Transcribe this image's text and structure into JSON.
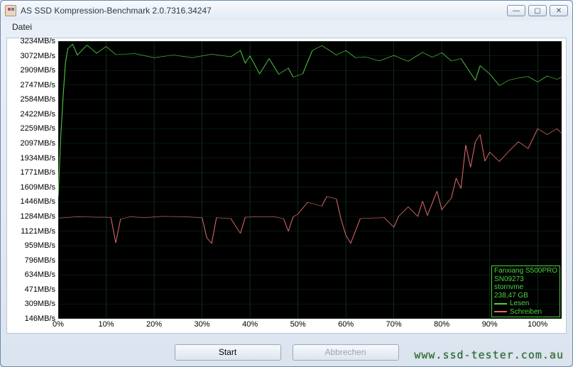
{
  "window": {
    "title": "AS SSD Kompression-Benchmark 2.0.7316.34247",
    "controls": {
      "minimize": "—",
      "maximize": "▢",
      "close": "✕"
    }
  },
  "menu": {
    "file": "Datei"
  },
  "chart": {
    "type": "line",
    "background_color": "#000000",
    "grid_color": "#104028",
    "panel_background": "#ffffff",
    "ylim": [
      146,
      3234
    ],
    "y_ticks": [
      3234,
      3072,
      2909,
      2747,
      2584,
      2422,
      2259,
      2097,
      1934,
      1771,
      1609,
      1446,
      1284,
      1121,
      959,
      796,
      634,
      471,
      309,
      146
    ],
    "y_unit": "MB/s",
    "xlim": [
      0,
      105
    ],
    "x_ticks": [
      0,
      10,
      20,
      30,
      40,
      50,
      60,
      70,
      80,
      90,
      100
    ],
    "x_unit": "%",
    "series": {
      "read": {
        "label": "Lesen",
        "color": "#4fd040",
        "line_width": 1.5,
        "data": [
          [
            0,
            1505
          ],
          [
            0.5,
            2140
          ],
          [
            1,
            2600
          ],
          [
            1.5,
            2990
          ],
          [
            2,
            3150
          ],
          [
            3,
            3200
          ],
          [
            4,
            3080
          ],
          [
            6,
            3190
          ],
          [
            8,
            3100
          ],
          [
            10,
            3175
          ],
          [
            12,
            3085
          ],
          [
            16,
            3095
          ],
          [
            20,
            3050
          ],
          [
            24,
            3080
          ],
          [
            28,
            3050
          ],
          [
            32,
            3090
          ],
          [
            36,
            3060
          ],
          [
            38,
            3130
          ],
          [
            39,
            2990
          ],
          [
            40,
            3070
          ],
          [
            42,
            2870
          ],
          [
            44,
            3040
          ],
          [
            46,
            2865
          ],
          [
            48,
            2935
          ],
          [
            49,
            2835
          ],
          [
            51,
            2870
          ],
          [
            53,
            3130
          ],
          [
            55,
            3185
          ],
          [
            58,
            3080
          ],
          [
            60,
            3130
          ],
          [
            62,
            3050
          ],
          [
            64,
            3060
          ],
          [
            67,
            3015
          ],
          [
            70,
            3075
          ],
          [
            73,
            3010
          ],
          [
            76,
            3110
          ],
          [
            78,
            3055
          ],
          [
            80,
            3105
          ],
          [
            82,
            3015
          ],
          [
            84,
            3040
          ],
          [
            86,
            2880
          ],
          [
            87,
            2800
          ],
          [
            88,
            2960
          ],
          [
            90,
            2870
          ],
          [
            92,
            2740
          ],
          [
            94,
            2800
          ],
          [
            96,
            2825
          ],
          [
            98,
            2840
          ],
          [
            100,
            2780
          ],
          [
            102,
            2847
          ],
          [
            104,
            2810
          ],
          [
            105,
            2835
          ]
        ]
      },
      "write": {
        "label": "Schreiben",
        "color": "#e06868",
        "line_width": 1.5,
        "data": [
          [
            0,
            1265
          ],
          [
            4,
            1280
          ],
          [
            8,
            1275
          ],
          [
            10,
            1275
          ],
          [
            11,
            1270
          ],
          [
            12,
            990
          ],
          [
            13,
            1255
          ],
          [
            15,
            1280
          ],
          [
            18,
            1270
          ],
          [
            22,
            1285
          ],
          [
            26,
            1280
          ],
          [
            30,
            1270
          ],
          [
            31,
            1045
          ],
          [
            32,
            985
          ],
          [
            33,
            1270
          ],
          [
            36,
            1260
          ],
          [
            38,
            1095
          ],
          [
            39,
            1275
          ],
          [
            42,
            1280
          ],
          [
            45,
            1280
          ],
          [
            47,
            1260
          ],
          [
            48,
            1120
          ],
          [
            49,
            1280
          ],
          [
            50,
            1310
          ],
          [
            52,
            1440
          ],
          [
            55,
            1400
          ],
          [
            56,
            1505
          ],
          [
            58,
            1480
          ],
          [
            59,
            1250
          ],
          [
            60,
            1075
          ],
          [
            61,
            985
          ],
          [
            63,
            1260
          ],
          [
            65,
            1265
          ],
          [
            68,
            1270
          ],
          [
            70,
            1165
          ],
          [
            71,
            1285
          ],
          [
            73,
            1390
          ],
          [
            75,
            1285
          ],
          [
            76,
            1455
          ],
          [
            77,
            1295
          ],
          [
            79,
            1565
          ],
          [
            80,
            1360
          ],
          [
            82,
            1490
          ],
          [
            83,
            1710
          ],
          [
            84,
            1595
          ],
          [
            85,
            2080
          ],
          [
            86,
            1830
          ],
          [
            87,
            2115
          ],
          [
            88,
            2195
          ],
          [
            89,
            1900
          ],
          [
            90,
            2000
          ],
          [
            92,
            1895
          ],
          [
            94,
            2010
          ],
          [
            96,
            2115
          ],
          [
            98,
            2040
          ],
          [
            100,
            2260
          ],
          [
            102,
            2195
          ],
          [
            104,
            2260
          ],
          [
            105,
            2210
          ]
        ]
      }
    }
  },
  "infobox": {
    "device": "Fanxiang S500PRO",
    "serial": "SN09273",
    "driver": "stornvme",
    "capacity": "238,47 GB"
  },
  "buttons": {
    "start": "Start",
    "abort": "Abbrechen"
  },
  "watermark": "www.ssd-tester.com.au"
}
